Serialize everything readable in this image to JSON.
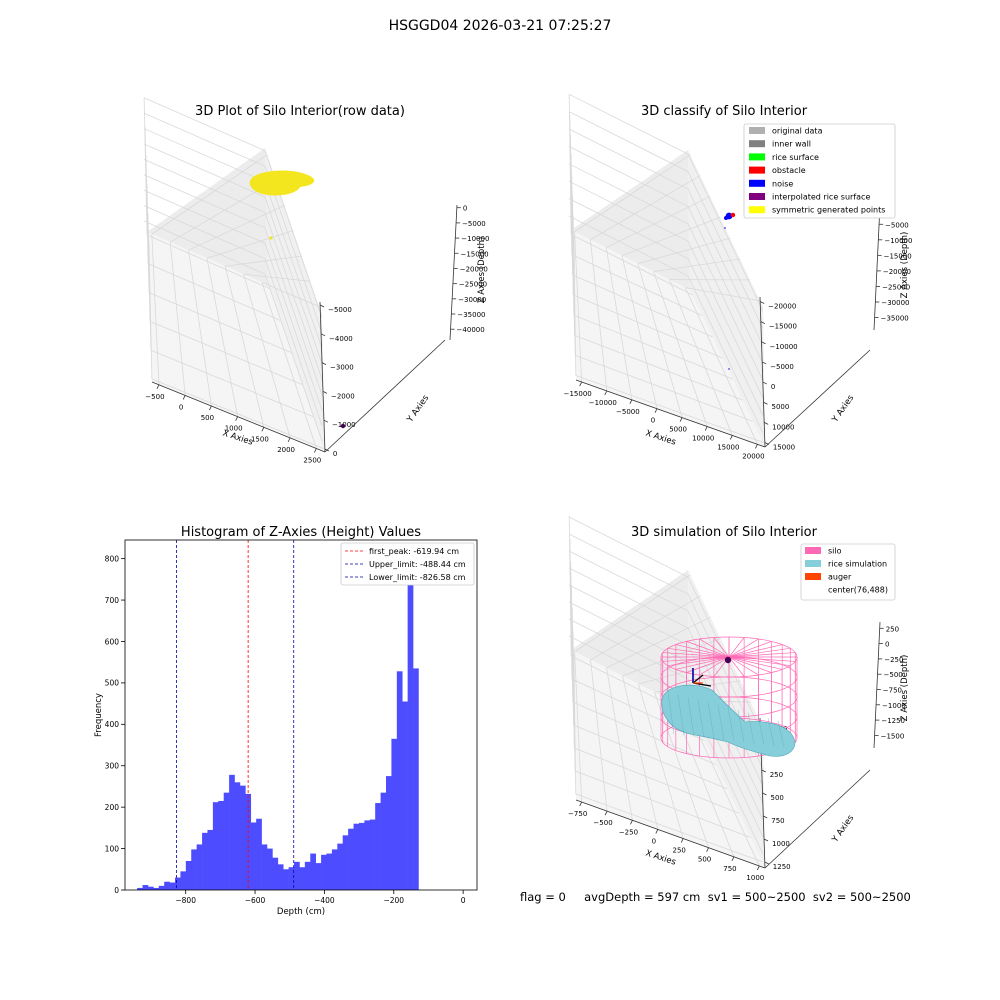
{
  "suptitle": "HSGGD04 2026-03-21 07:25:27",
  "footer": "flag = 0     avgDepth = 597 cm  sv1 = 500~2500  sv2 = 500~2500",
  "colors": {
    "yellow": "#f4e61e",
    "purple": "#440154",
    "blue": "#0000ff",
    "red": "#ff0000",
    "silo": "#ff69b4",
    "rice": "#87cedb",
    "auger": "#ff4500",
    "hist": "#4d4dff"
  },
  "chart_data": [
    {
      "type": "scatter",
      "title": "3D Plot of Silo Interior(row data)",
      "xlabel": "X Axies",
      "ylabel": "Y Axies",
      "zlabel": "Z Axies (Depth)",
      "x_ticks": [
        "−500",
        "0",
        "500",
        "1000",
        "1500",
        "2000",
        "2500"
      ],
      "y_ticks": [
        "0",
        "−1000",
        "−2000",
        "−3000",
        "−4000",
        "−5000"
      ],
      "z_ticks": [
        "0",
        "−5000",
        "−10000",
        "−15000",
        "−20000",
        "−25000",
        "−30000",
        "−35000",
        "−40000"
      ]
    },
    {
      "type": "scatter",
      "title": "3D classify of Silo Interior",
      "xlabel": "X Axies",
      "ylabel": "Y Axies",
      "zlabel": "Z Axies (Depth)",
      "x_ticks": [
        "−15000",
        "−10000",
        "−5000",
        "0",
        "5000",
        "10000",
        "15000",
        "20000"
      ],
      "y_ticks": [
        "15000",
        "10000",
        "5000",
        "0",
        "−5000",
        "−10000",
        "−15000",
        "−20000"
      ],
      "z_ticks": [
        "0",
        "−5000",
        "−10000",
        "−15000",
        "−20000",
        "−25000",
        "−30000",
        "−35000"
      ],
      "legend": [
        {
          "label": "original data",
          "color": "#b0b0b0"
        },
        {
          "label": "inner wall",
          "color": "#808080"
        },
        {
          "label": "rice surface",
          "color": "#00ff00"
        },
        {
          "label": "obstacle",
          "color": "#ff0000"
        },
        {
          "label": "noise",
          "color": "#0000ff"
        },
        {
          "label": "interpolated rice surface",
          "color": "#800080"
        },
        {
          "label": "symmetric generated points",
          "color": "#ffff00"
        }
      ]
    },
    {
      "type": "bar",
      "title": "Histogram of Z-Axies (Height) Values",
      "xlabel": "Depth (cm)",
      "ylabel": "Frequency",
      "xlim": [
        -975,
        40
      ],
      "ylim": [
        0,
        845
      ],
      "bin_start": -940,
      "bin_width": 15.6,
      "values": [
        5,
        12,
        8,
        5,
        10,
        20,
        18,
        30,
        45,
        70,
        98,
        110,
        138,
        145,
        212,
        215,
        235,
        278,
        260,
        252,
        232,
        163,
        172,
        110,
        100,
        78,
        62,
        50,
        55,
        68,
        55,
        68,
        88,
        65,
        85,
        88,
        98,
        112,
        132,
        148,
        160,
        162,
        168,
        170,
        210,
        235,
        275,
        365,
        528,
        455,
        800,
        535
      ],
      "x_ticks": [
        -800,
        -600,
        -400,
        -200,
        0
      ],
      "y_ticks": [
        0,
        100,
        200,
        300,
        400,
        500,
        600,
        700,
        800
      ],
      "lines": [
        {
          "label": "first_peak: -619.94 cm",
          "x": -619.94,
          "color": "#ff0000"
        },
        {
          "label": "Upper_limit: -488.44 cm",
          "x": -488.44,
          "color": "#0000aa"
        },
        {
          "label": "Lower_limit: -826.58 cm",
          "x": -826.58,
          "color": "#0000aa"
        }
      ]
    },
    {
      "type": "scatter",
      "title": "3D simulation of Silo Interior",
      "xlabel": "X Axies",
      "ylabel": "Y Axies",
      "zlabel": "Z Axies (Depth)",
      "x_ticks": [
        "−750",
        "−500",
        "−250",
        "0",
        "250",
        "500",
        "750",
        "1000"
      ],
      "y_ticks": [
        "1250",
        "1000",
        "750",
        "500",
        "250",
        "0",
        "−250"
      ],
      "z_ticks": [
        "250",
        "0",
        "−250",
        "−500",
        "−750",
        "−1000",
        "−1250",
        "−1500"
      ],
      "legend": [
        {
          "label": "silo",
          "color": "#ff69b4"
        },
        {
          "label": "rice simulation",
          "color": "#87cedb"
        },
        {
          "label": "auger",
          "color": "#ff4500"
        },
        {
          "label": "center(76,488)",
          "color": "none"
        }
      ]
    }
  ]
}
